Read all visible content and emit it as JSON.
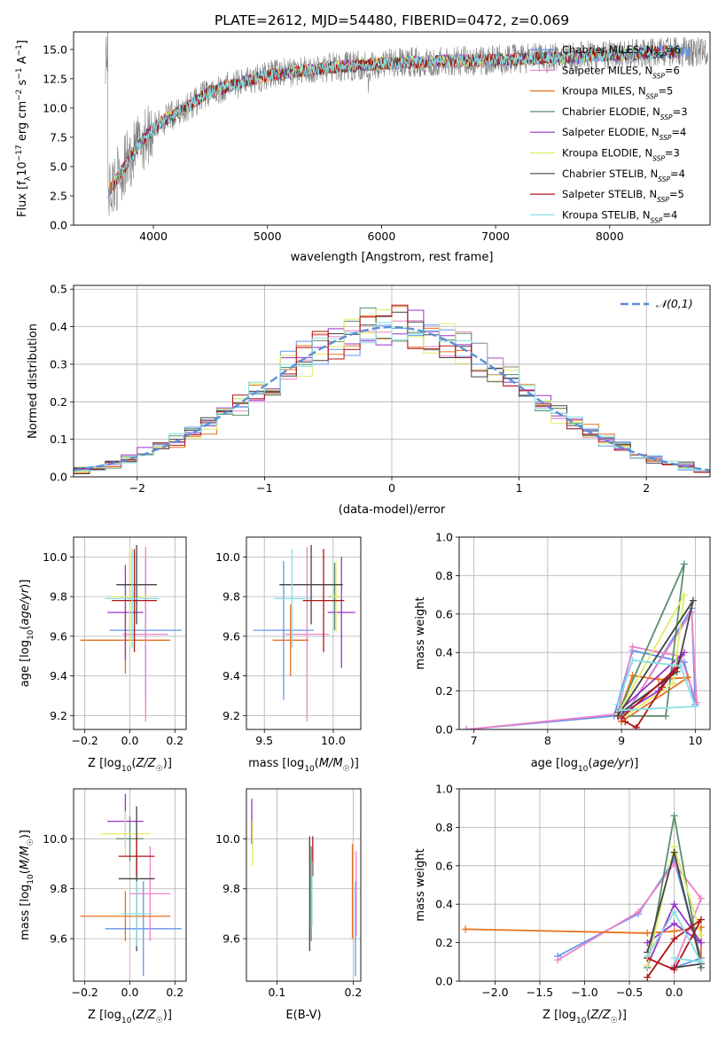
{
  "figure_title": "PLATE=2612, MJD=54480, FIBERID=0472, z=0.069",
  "models": [
    {
      "name": "Chabrier MILES",
      "nssp": "6",
      "color": "#6495ed"
    },
    {
      "name": "Salpeter MILES",
      "nssp": "6",
      "color": "#ee82c8"
    },
    {
      "name": "Kroupa MILES",
      "nssp": "5",
      "color": "#e8711d"
    },
    {
      "name": "Chabrier ELODIE",
      "nssp": "3",
      "color": "#5a8f6e"
    },
    {
      "name": "Salpeter ELODIE",
      "nssp": "4",
      "color": "#9932cc"
    },
    {
      "name": "Kroupa ELODIE",
      "nssp": "3",
      "color": "#dfee66"
    },
    {
      "name": "Chabrier STELIB",
      "nssp": "4",
      "color": "#444444"
    },
    {
      "name": "Salpeter STELIB",
      "nssp": "5",
      "color": "#b01515"
    },
    {
      "name": "Kroupa STELIB",
      "nssp": "4",
      "color": "#86dfe6"
    }
  ],
  "chart_data": [
    {
      "id": "spectrum",
      "type": "line",
      "title": "PLATE=2612, MJD=54480, FIBERID=0472, z=0.069",
      "xlabel": "wavelength [Angstrom, rest frame]",
      "ylabel": "Flux [f_λ 10^-17 erg cm^-2 s^-1 A^-1]",
      "xlim": [
        3300,
        8880
      ],
      "ylim": [
        0,
        16.5
      ],
      "xticks": [
        4000,
        5000,
        6000,
        7000,
        8000
      ],
      "yticks": [
        0.0,
        2.5,
        5.0,
        7.5,
        10.0,
        12.5,
        15.0
      ],
      "data_color": "#808080",
      "continuum": {
        "x": [
          3600,
          3700,
          3800,
          3900,
          4000,
          4100,
          4200,
          4300,
          4400,
          4500,
          4700,
          5000,
          5500,
          6000,
          6500,
          7000,
          7500,
          8000,
          8500
        ],
        "y": [
          2.8,
          4.2,
          5.8,
          7.2,
          8.3,
          9.0,
          9.5,
          10.1,
          10.8,
          11.4,
          12.0,
          12.8,
          13.4,
          13.8,
          14.0,
          14.1,
          14.3,
          14.5,
          14.8
        ]
      },
      "legend": "upper right",
      "grid": false
    },
    {
      "id": "residual_histogram",
      "type": "histogram",
      "xlabel": "(data-model)/error",
      "ylabel": "Normed distribution",
      "xlim": [
        -2.5,
        2.5
      ],
      "ylim": [
        0,
        0.51
      ],
      "xticks": [
        -2,
        -1,
        0,
        1,
        2
      ],
      "yticks": [
        0.0,
        0.1,
        0.2,
        0.3,
        0.4,
        0.5
      ],
      "bins": 40,
      "reference_curve": {
        "label": "𝒩(0,1)",
        "mean": 0,
        "sigma": 1,
        "color": "#5b8fd6"
      },
      "legend": "upper right",
      "grid": true
    },
    {
      "id": "Z_vs_age",
      "type": "scatter-errorbar",
      "xlabel": "Z [log10(Z/Z_sun)]",
      "ylabel": "age [log10(age/yr)]",
      "xlim": [
        -0.25,
        0.25
      ],
      "ylim": [
        9.13,
        10.1
      ],
      "xticks": [
        -0.2,
        0.0,
        0.2
      ],
      "yticks": [
        9.2,
        9.4,
        9.6,
        9.8,
        10.0
      ],
      "grid": true,
      "points": [
        {
          "m": 0,
          "x": 0.07,
          "y": 9.63,
          "xerr": 0.16,
          "yerr": 0.36
        },
        {
          "m": 1,
          "x": 0.07,
          "y": 9.61,
          "xerr": 0.1,
          "yerr": 0.44
        },
        {
          "m": 2,
          "x": -0.02,
          "y": 9.58,
          "xerr": 0.2,
          "yerr": 0.17
        },
        {
          "m": 3,
          "x": 0.0,
          "y": 9.8,
          "xerr": 0.06,
          "yerr": 0.22
        },
        {
          "m": 4,
          "x": -0.02,
          "y": 9.72,
          "xerr": 0.08,
          "yerr": 0.24
        },
        {
          "m": 5,
          "x": 0.0,
          "y": 9.8,
          "xerr": 0.08,
          "yerr": 0.25
        },
        {
          "m": 6,
          "x": 0.03,
          "y": 9.86,
          "xerr": 0.09,
          "yerr": 0.2
        },
        {
          "m": 7,
          "x": 0.02,
          "y": 9.78,
          "xerr": 0.1,
          "yerr": 0.26
        },
        {
          "m": 8,
          "x": 0.01,
          "y": 9.79,
          "xerr": 0.12,
          "yerr": 0.25
        }
      ]
    },
    {
      "id": "mass_vs_age",
      "type": "scatter-errorbar",
      "xlabel": "mass [log10(M/M_sun)]",
      "ylabel": "",
      "xlim": [
        9.37,
        10.2
      ],
      "ylim": [
        9.13,
        10.1
      ],
      "xticks": [
        9.5,
        10.0
      ],
      "yticks": [
        9.2,
        9.4,
        9.6,
        9.8,
        10.0
      ],
      "grid": true,
      "points": [
        {
          "m": 0,
          "x": 9.64,
          "y": 9.63,
          "xerr": 0.22,
          "yerr": 0.35
        },
        {
          "m": 1,
          "x": 9.81,
          "y": 9.61,
          "xerr": 0.16,
          "yerr": 0.44
        },
        {
          "m": 2,
          "x": 9.69,
          "y": 9.58,
          "xerr": 0.13,
          "yerr": 0.18
        },
        {
          "m": 3,
          "x": 10.01,
          "y": 9.8,
          "xerr": 0.04,
          "yerr": 0.17
        },
        {
          "m": 4,
          "x": 10.06,
          "y": 9.72,
          "xerr": 0.1,
          "yerr": 0.28
        },
        {
          "m": 5,
          "x": 10.02,
          "y": 9.8,
          "xerr": 0.04,
          "yerr": 0.18
        },
        {
          "m": 6,
          "x": 9.84,
          "y": 9.86,
          "xerr": 0.23,
          "yerr": 0.2
        },
        {
          "m": 7,
          "x": 9.93,
          "y": 9.78,
          "xerr": 0.15,
          "yerr": 0.26
        },
        {
          "m": 8,
          "x": 9.7,
          "y": 9.79,
          "xerr": 0.13,
          "yerr": 0.25
        }
      ]
    },
    {
      "id": "age_vs_weight",
      "type": "line",
      "xlabel": "age [log10(age/yr)]",
      "ylabel": "mass weight",
      "xlim": [
        6.8,
        10.2
      ],
      "ylim": [
        0,
        1.0
      ],
      "xticks": [
        7,
        8,
        9,
        10
      ],
      "yticks": [
        0.0,
        0.2,
        0.4,
        0.6,
        0.8,
        1.0
      ],
      "grid": true,
      "series": [
        {
          "m": 0,
          "points": [
            [
              6.9,
              0.0
            ],
            [
              8.9,
              0.07
            ],
            [
              9.15,
              0.41
            ],
            [
              9.85,
              0.35
            ],
            [
              10.0,
              0.13
            ],
            [
              9.95,
              0.63
            ],
            [
              9.0,
              0.04
            ]
          ]
        },
        {
          "m": 1,
          "points": [
            [
              6.9,
              0.0
            ],
            [
              8.95,
              0.08
            ],
            [
              9.15,
              0.43
            ],
            [
              9.8,
              0.38
            ],
            [
              10.02,
              0.14
            ],
            [
              9.95,
              0.61
            ],
            [
              9.0,
              0.05
            ]
          ]
        },
        {
          "m": 2,
          "points": [
            [
              8.95,
              0.07
            ],
            [
              9.15,
              0.28
            ],
            [
              9.5,
              0.26
            ],
            [
              9.9,
              0.27
            ],
            [
              9.0,
              0.04
            ]
          ]
        },
        {
          "m": 3,
          "points": [
            [
              8.95,
              0.08
            ],
            [
              9.85,
              0.86
            ],
            [
              9.6,
              0.07
            ],
            [
              9.0,
              0.07
            ]
          ]
        },
        {
          "m": 4,
          "points": [
            [
              8.95,
              0.09
            ],
            [
              9.85,
              0.4
            ],
            [
              9.5,
              0.2
            ],
            [
              9.0,
              0.08
            ]
          ]
        },
        {
          "m": 5,
          "points": [
            [
              8.95,
              0.08
            ],
            [
              9.85,
              0.7
            ],
            [
              9.7,
              0.24
            ],
            [
              9.05,
              0.07
            ]
          ]
        },
        {
          "m": 6,
          "points": [
            [
              8.95,
              0.07
            ],
            [
              9.97,
              0.67
            ],
            [
              9.75,
              0.3
            ],
            [
              9.0,
              0.09
            ]
          ]
        },
        {
          "m": 7,
          "points": [
            [
              9.05,
              0.04
            ],
            [
              9.2,
              0.01
            ],
            [
              9.55,
              0.22
            ],
            [
              9.75,
              0.32
            ],
            [
              9.0,
              0.06
            ]
          ]
        },
        {
          "m": 8,
          "points": [
            [
              8.95,
              0.13
            ],
            [
              9.15,
              0.36
            ],
            [
              9.8,
              0.33
            ],
            [
              10.0,
              0.12
            ],
            [
              9.0,
              0.1
            ]
          ]
        }
      ]
    },
    {
      "id": "Z_vs_mass",
      "type": "scatter-errorbar",
      "xlabel": "Z [log10(Z/Z_sun)]",
      "ylabel": "mass [log10(M/M_sun)]",
      "xlim": [
        -0.25,
        0.25
      ],
      "ylim": [
        9.43,
        10.2
      ],
      "xticks": [
        -0.2,
        0.0,
        0.2
      ],
      "yticks": [
        9.6,
        9.8,
        10.0
      ],
      "grid": true,
      "points": [
        {
          "m": 0,
          "x": 0.06,
          "y": 9.64,
          "xerr": 0.17,
          "yerr": 0.19
        },
        {
          "m": 1,
          "x": 0.09,
          "y": 9.78,
          "xerr": 0.09,
          "yerr": 0.19
        },
        {
          "m": 2,
          "x": -0.02,
          "y": 9.69,
          "xerr": 0.2,
          "yerr": 0.1
        },
        {
          "m": 3,
          "x": 0.0,
          "y": 10.0,
          "xerr": 0.06,
          "yerr": 0.09
        },
        {
          "m": 4,
          "x": -0.02,
          "y": 10.07,
          "xerr": 0.08,
          "yerr": 0.11
        },
        {
          "m": 5,
          "x": -0.02,
          "y": 10.02,
          "xerr": 0.11,
          "yerr": 0.09
        },
        {
          "m": 6,
          "x": 0.03,
          "y": 9.84,
          "xerr": 0.08,
          "yerr": 0.29
        },
        {
          "m": 7,
          "x": 0.03,
          "y": 9.93,
          "xerr": 0.08,
          "yerr": 0.08
        },
        {
          "m": 8,
          "x": 0.03,
          "y": 9.7,
          "xerr": 0.07,
          "yerr": 0.13
        }
      ]
    },
    {
      "id": "ebv_vs_mass",
      "type": "scatter-errorbar",
      "xlabel": "E(B-V)",
      "ylabel": "",
      "xlim": [
        0.06,
        0.21
      ],
      "ylim": [
        9.43,
        10.2
      ],
      "xticks": [
        0.1,
        0.2
      ],
      "yticks": [
        9.6,
        9.8,
        10.0
      ],
      "grid": true,
      "points": [
        {
          "m": 0,
          "x": 0.203,
          "y": 9.64,
          "xerr": 0.0,
          "yerr": 0.19
        },
        {
          "m": 1,
          "x": 0.204,
          "y": 9.78,
          "xerr": 0.0,
          "yerr": 0.17
        },
        {
          "m": 2,
          "x": 0.199,
          "y": 9.79,
          "xerr": 0.0,
          "yerr": 0.19
        },
        {
          "m": 3,
          "x": 0.145,
          "y": 9.78,
          "xerr": 0.0,
          "yerr": 0.19
        },
        {
          "m": 4,
          "x": 0.067,
          "y": 10.07,
          "xerr": 0.0,
          "yerr": 0.09
        },
        {
          "m": 5,
          "x": 0.068,
          "y": 9.98,
          "xerr": 0.0,
          "yerr": 0.09
        },
        {
          "m": 6,
          "x": 0.143,
          "y": 9.78,
          "xerr": 0.0,
          "yerr": 0.23
        },
        {
          "m": 7,
          "x": 0.147,
          "y": 9.93,
          "xerr": 0.0,
          "yerr": 0.08
        },
        {
          "m": 8,
          "x": 0.146,
          "y": 9.78,
          "xerr": 0.0,
          "yerr": 0.13
        }
      ]
    },
    {
      "id": "Z_vs_weight",
      "type": "line",
      "xlabel": "Z [log10(Z/Z_sun)]",
      "ylabel": "mass weight",
      "xlim": [
        -2.4,
        0.4
      ],
      "ylim": [
        0,
        1.0
      ],
      "xticks": [
        -2.0,
        -1.5,
        -1.0,
        -0.5,
        0.0
      ],
      "yticks": [
        0.0,
        0.2,
        0.4,
        0.6,
        0.8,
        1.0
      ],
      "grid": true,
      "series": [
        {
          "m": 0,
          "points": [
            [
              -1.3,
              0.13
            ],
            [
              -0.4,
              0.35
            ],
            [
              0.0,
              0.63
            ],
            [
              0.3,
              0.12
            ],
            [
              0.0,
              0.07
            ]
          ]
        },
        {
          "m": 1,
          "points": [
            [
              -1.3,
              0.11
            ],
            [
              -0.4,
              0.36
            ],
            [
              0.0,
              0.61
            ],
            [
              0.3,
              0.43
            ],
            [
              0.0,
              0.08
            ]
          ]
        },
        {
          "m": 2,
          "points": [
            [
              -2.33,
              0.27
            ],
            [
              -0.3,
              0.25
            ],
            [
              0.0,
              0.26
            ],
            [
              0.3,
              0.28
            ],
            [
              0.3,
              0.07
            ]
          ]
        },
        {
          "m": 3,
          "points": [
            [
              -0.3,
              0.07
            ],
            [
              0.0,
              0.86
            ],
            [
              0.3,
              0.07
            ]
          ]
        },
        {
          "m": 4,
          "points": [
            [
              -0.3,
              0.08
            ],
            [
              0.0,
              0.4
            ],
            [
              0.3,
              0.2
            ],
            [
              0.0,
              0.3
            ],
            [
              -0.3,
              0.2
            ]
          ]
        },
        {
          "m": 5,
          "points": [
            [
              -0.3,
              0.08
            ],
            [
              0.0,
              0.7
            ],
            [
              0.3,
              0.24
            ]
          ]
        },
        {
          "m": 6,
          "points": [
            [
              -0.3,
              0.15
            ],
            [
              0.0,
              0.67
            ],
            [
              0.3,
              0.09
            ],
            [
              0.0,
              0.07
            ]
          ]
        },
        {
          "m": 7,
          "points": [
            [
              -0.3,
              0.02
            ],
            [
              0.0,
              0.22
            ],
            [
              0.3,
              0.32
            ],
            [
              0.0,
              0.06
            ],
            [
              -0.3,
              0.12
            ]
          ]
        },
        {
          "m": 8,
          "points": [
            [
              -0.3,
              0.13
            ],
            [
              0.0,
              0.36
            ],
            [
              0.3,
              0.1
            ],
            [
              0.0,
              0.12
            ]
          ]
        }
      ]
    }
  ]
}
